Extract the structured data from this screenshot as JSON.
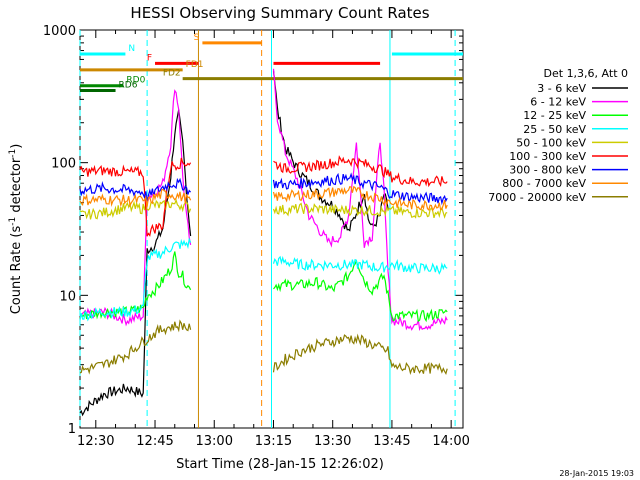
{
  "chart_data": {
    "type": "line",
    "title": "HESSI Observing Summary Count Rates",
    "xlabel": "Start Time (28-Jan-15 12:26:02)",
    "ylabel_prefix": "Count Rate (s",
    "ylabel_sup": "-1",
    "ylabel_mid": " detector",
    "ylabel_suffix": ")",
    "footer_date": "28-Jan-2015 19:03",
    "xlim_min": [
      0,
      97
    ],
    "ylim": [
      1,
      1000
    ],
    "yscale": "log",
    "x_ticks": [
      {
        "min": 4,
        "label": "12:30"
      },
      {
        "min": 19,
        "label": "12:45"
      },
      {
        "min": 34,
        "label": "13:00"
      },
      {
        "min": 49,
        "label": "13:15"
      },
      {
        "min": 64,
        "label": "13:30"
      },
      {
        "min": 79,
        "label": "13:45"
      },
      {
        "min": 94,
        "label": "14:00"
      }
    ],
    "y_ticks": [
      {
        "value": 1,
        "label": "1"
      },
      {
        "value": 10,
        "label": "10"
      },
      {
        "value": 100,
        "label": "100"
      },
      {
        "value": 1000,
        "label": "1000"
      }
    ],
    "legend_title": "Det 1,3,6, Att 0",
    "series": [
      {
        "name": "3 - 6 keV",
        "color": "#000000",
        "points": [
          [
            0,
            1.3
          ],
          [
            6,
            1.8
          ],
          [
            12,
            2.0
          ],
          [
            16,
            1.8
          ],
          [
            17,
            22
          ],
          [
            19,
            24
          ],
          [
            21,
            32
          ],
          [
            23,
            80
          ],
          [
            24,
            170
          ],
          [
            25,
            230
          ],
          [
            26,
            140
          ],
          [
            27,
            60
          ],
          [
            28,
            28
          ],
          [
            null,
            null
          ],
          [
            49,
            520
          ],
          [
            50,
            250
          ],
          [
            52,
            130
          ],
          [
            55,
            90
          ],
          [
            58,
            70
          ],
          [
            61,
            55
          ],
          [
            64,
            48
          ],
          [
            66,
            40
          ],
          [
            68,
            30
          ],
          [
            70,
            42
          ],
          [
            72,
            60
          ],
          [
            73,
            38
          ],
          [
            74,
            32
          ],
          [
            76,
            40
          ],
          [
            77,
            58
          ],
          [
            78,
            45
          ]
        ]
      },
      {
        "name": "6 - 12 keV",
        "color": "#ff00ff",
        "points": [
          [
            0,
            7
          ],
          [
            6,
            7.5
          ],
          [
            12,
            6.5
          ],
          [
            16,
            7
          ],
          [
            17,
            55
          ],
          [
            19,
            60
          ],
          [
            21,
            70
          ],
          [
            23,
            140
          ],
          [
            24,
            380
          ],
          [
            25,
            260
          ],
          [
            26,
            80
          ],
          [
            27,
            38
          ],
          [
            28,
            24
          ],
          [
            null,
            null
          ],
          [
            49,
            470
          ],
          [
            50,
            220
          ],
          [
            52,
            120
          ],
          [
            55,
            75
          ],
          [
            58,
            40
          ],
          [
            61,
            30
          ],
          [
            63,
            25
          ],
          [
            66,
            28
          ],
          [
            68,
            40
          ],
          [
            70,
            140
          ],
          [
            71,
            60
          ],
          [
            72,
            25
          ],
          [
            74,
            28
          ],
          [
            76,
            150
          ],
          [
            77,
            60
          ],
          [
            78,
            15
          ],
          [
            79,
            6.5
          ],
          [
            84,
            6
          ],
          [
            88,
            6
          ],
          [
            93,
            6.5
          ]
        ]
      },
      {
        "name": "12 - 25 keV",
        "color": "#00ff00",
        "points": [
          [
            0,
            7
          ],
          [
            6,
            7.5
          ],
          [
            12,
            7.5
          ],
          [
            16,
            8
          ],
          [
            17,
            10
          ],
          [
            19,
            11
          ],
          [
            21,
            13
          ],
          [
            23,
            16
          ],
          [
            24,
            20
          ],
          [
            25,
            15
          ],
          [
            26,
            14
          ],
          [
            27,
            12
          ],
          [
            28,
            11
          ],
          [
            null,
            null
          ],
          [
            49,
            12
          ],
          [
            52,
            12
          ],
          [
            56,
            12
          ],
          [
            60,
            12.5
          ],
          [
            64,
            11
          ],
          [
            68,
            14
          ],
          [
            70,
            19
          ],
          [
            72,
            13
          ],
          [
            74,
            11
          ],
          [
            77,
            14
          ],
          [
            78,
            10
          ],
          [
            79,
            7
          ],
          [
            84,
            7
          ],
          [
            88,
            7
          ],
          [
            93,
            7.5
          ]
        ]
      },
      {
        "name": "25 - 50 keV",
        "color": "#00ffff",
        "points": [
          [
            0,
            7
          ],
          [
            6,
            7.5
          ],
          [
            12,
            7.5
          ],
          [
            16,
            8
          ],
          [
            17,
            19
          ],
          [
            19,
            20
          ],
          [
            21,
            21
          ],
          [
            23,
            23
          ],
          [
            24,
            24
          ],
          [
            26,
            24
          ],
          [
            28,
            25
          ],
          [
            null,
            null
          ],
          [
            49,
            18
          ],
          [
            52,
            18
          ],
          [
            56,
            17
          ],
          [
            60,
            17
          ],
          [
            64,
            17
          ],
          [
            68,
            17
          ],
          [
            72,
            17
          ],
          [
            76,
            16
          ],
          [
            79,
            17
          ],
          [
            84,
            16
          ],
          [
            88,
            16
          ],
          [
            93,
            16
          ]
        ]
      },
      {
        "name": "50 - 100 keV",
        "color": "#cccc00",
        "points": [
          [
            0,
            40
          ],
          [
            6,
            42
          ],
          [
            12,
            46
          ],
          [
            16,
            45
          ],
          [
            17,
            48
          ],
          [
            19,
            48
          ],
          [
            21,
            47
          ],
          [
            23,
            49
          ],
          [
            26,
            48
          ],
          [
            28,
            45
          ],
          [
            null,
            null
          ],
          [
            49,
            45
          ],
          [
            52,
            44
          ],
          [
            56,
            45
          ],
          [
            60,
            45
          ],
          [
            64,
            44
          ],
          [
            68,
            44
          ],
          [
            72,
            44
          ],
          [
            76,
            43
          ],
          [
            79,
            43
          ],
          [
            84,
            42
          ],
          [
            88,
            42
          ],
          [
            93,
            42
          ]
        ]
      },
      {
        "name": "100 - 300 keV",
        "color": "#ff0000",
        "points": [
          [
            0,
            85
          ],
          [
            6,
            87
          ],
          [
            12,
            85
          ],
          [
            16,
            84
          ],
          [
            17,
            30
          ],
          [
            19,
            32
          ],
          [
            21,
            34
          ],
          [
            22,
            60
          ],
          [
            23,
            95
          ],
          [
            26,
            100
          ],
          [
            28,
            100
          ],
          [
            null,
            null
          ],
          [
            49,
            100
          ],
          [
            52,
            90
          ],
          [
            56,
            92
          ],
          [
            60,
            95
          ],
          [
            64,
            100
          ],
          [
            68,
            105
          ],
          [
            72,
            98
          ],
          [
            76,
            90
          ],
          [
            79,
            78
          ],
          [
            84,
            72
          ],
          [
            88,
            72
          ],
          [
            93,
            72
          ]
        ]
      },
      {
        "name": "300 - 800 keV",
        "color": "#0000ff",
        "points": [
          [
            0,
            62
          ],
          [
            6,
            64
          ],
          [
            12,
            62
          ],
          [
            16,
            60
          ],
          [
            17,
            55
          ],
          [
            19,
            60
          ],
          [
            21,
            65
          ],
          [
            23,
            70
          ],
          [
            26,
            68
          ],
          [
            28,
            60
          ],
          [
            null,
            null
          ],
          [
            49,
            70
          ],
          [
            52,
            68
          ],
          [
            56,
            70
          ],
          [
            60,
            72
          ],
          [
            64,
            74
          ],
          [
            68,
            76
          ],
          [
            72,
            70
          ],
          [
            76,
            65
          ],
          [
            79,
            58
          ],
          [
            84,
            55
          ],
          [
            88,
            54
          ],
          [
            93,
            54
          ]
        ]
      },
      {
        "name": "800 - 7000 keV",
        "color": "#ff8800",
        "points": [
          [
            0,
            52
          ],
          [
            6,
            53
          ],
          [
            12,
            52
          ],
          [
            16,
            52
          ],
          [
            17,
            50
          ],
          [
            19,
            55
          ],
          [
            21,
            58
          ],
          [
            23,
            58
          ],
          [
            26,
            55
          ],
          [
            28,
            52
          ],
          [
            null,
            null
          ],
          [
            49,
            55
          ],
          [
            52,
            56
          ],
          [
            56,
            57
          ],
          [
            60,
            58
          ],
          [
            64,
            60
          ],
          [
            68,
            62
          ],
          [
            72,
            58
          ],
          [
            76,
            54
          ],
          [
            79,
            50
          ],
          [
            84,
            48
          ],
          [
            88,
            48
          ],
          [
            93,
            48
          ]
        ]
      },
      {
        "name": "7000 - 20000 keV",
        "color": "#8b7d00",
        "points": [
          [
            0,
            2.7
          ],
          [
            6,
            3.0
          ],
          [
            12,
            3.6
          ],
          [
            16,
            4.5
          ],
          [
            17,
            4.7
          ],
          [
            19,
            5.2
          ],
          [
            21,
            5.6
          ],
          [
            23,
            5.8
          ],
          [
            26,
            6.0
          ],
          [
            28,
            5.5
          ],
          [
            null,
            null
          ],
          [
            49,
            2.8
          ],
          [
            52,
            3.3
          ],
          [
            56,
            3.8
          ],
          [
            60,
            4.2
          ],
          [
            64,
            4.5
          ],
          [
            68,
            4.8
          ],
          [
            72,
            4.5
          ],
          [
            76,
            4.0
          ],
          [
            78,
            3.8
          ],
          [
            79,
            2.9
          ],
          [
            84,
            2.8
          ],
          [
            88,
            2.8
          ],
          [
            93,
            2.8
          ]
        ]
      }
    ],
    "flag_bars": [
      {
        "label": "N",
        "color": "#00ffff",
        "segments": [
          [
            0,
            11.5
          ],
          [
            79,
            97
          ]
        ],
        "y": 660
      },
      {
        "label": "S",
        "color": "#ff8800",
        "segments": [
          [
            31,
            46
          ]
        ],
        "y": 800
      },
      {
        "label": "F",
        "color": "#ff0000",
        "segments": [
          [
            19,
            30
          ],
          [
            49,
            76
          ]
        ],
        "y": 560
      },
      {
        "label": "FD1",
        "color": "#cc8800",
        "segments": [
          [
            0,
            26
          ]
        ],
        "y": 500
      },
      {
        "label": "FD2",
        "color": "#8b7d00",
        "segments": [
          [
            26,
            97
          ]
        ],
        "y": 430
      },
      {
        "label": "RD0",
        "color": "#008800",
        "segments": [
          [
            0,
            11
          ]
        ],
        "y": 380
      },
      {
        "label": "RD6",
        "color": "#006600",
        "segments": [
          [
            0,
            9
          ]
        ],
        "y": 350
      }
    ],
    "vlines": [
      {
        "min": 0,
        "color": "#00ffff",
        "dash": true
      },
      {
        "min": 17,
        "color": "#00ffff",
        "dash": true
      },
      {
        "min": 30,
        "color": "#cc8800",
        "dash": false
      },
      {
        "min": 46,
        "color": "#ff8800",
        "dash": true
      },
      {
        "min": 48.5,
        "color": "#00ffff",
        "dash": false
      },
      {
        "min": 78.5,
        "color": "#00ffff",
        "dash": false
      },
      {
        "min": 95,
        "color": "#00ffff",
        "dash": true
      }
    ],
    "grid": false,
    "legend_position": "right"
  }
}
